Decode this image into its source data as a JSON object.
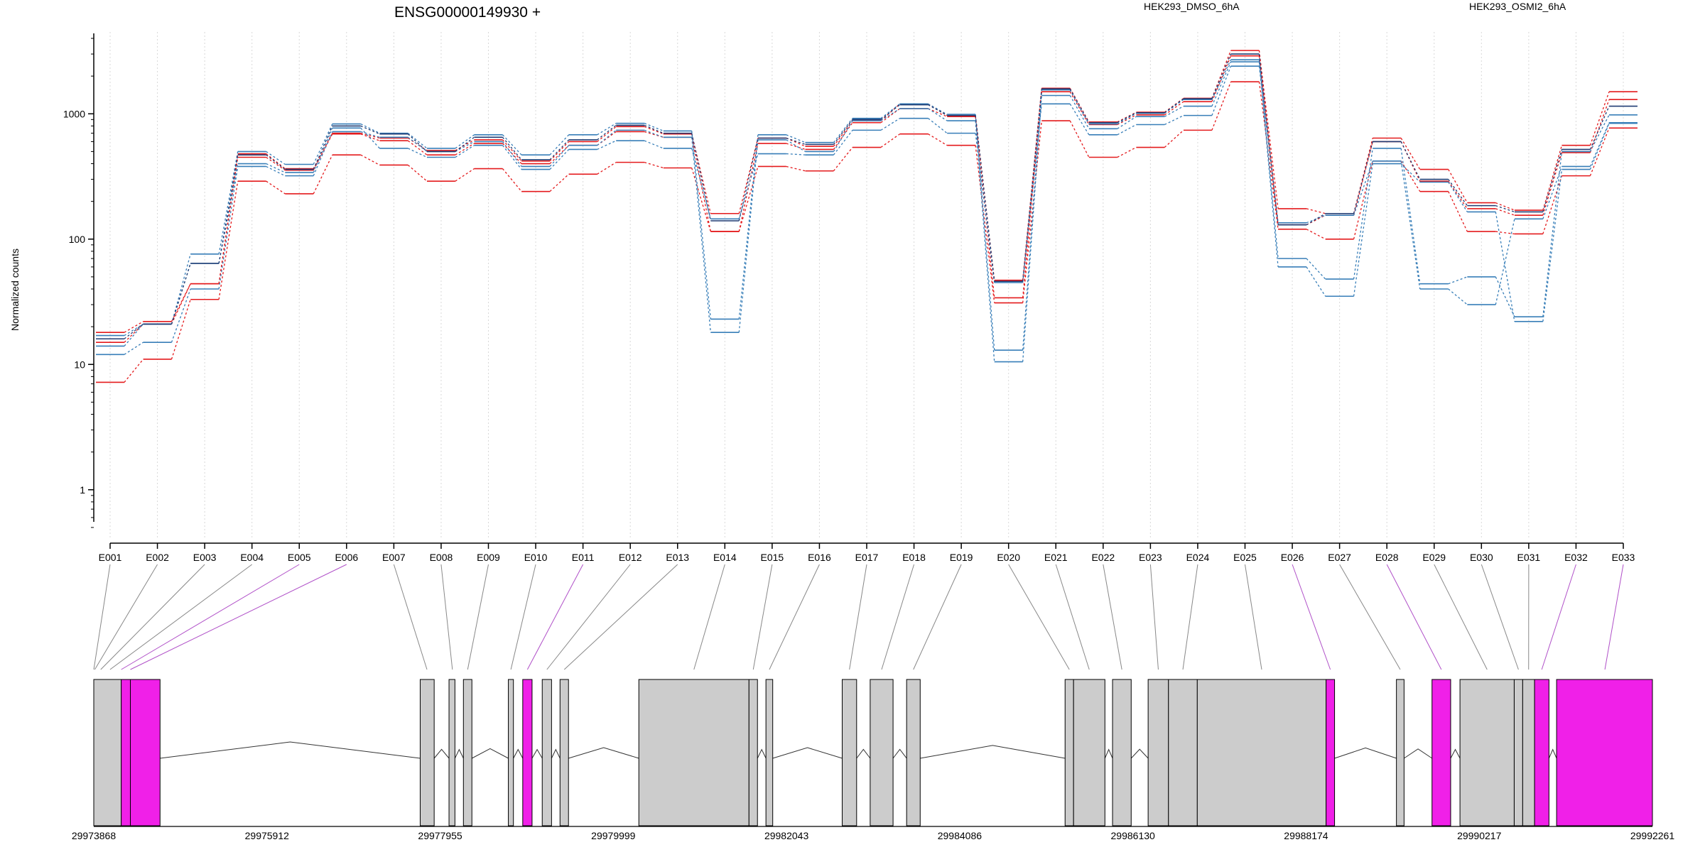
{
  "chart_data": {
    "type": "line",
    "title": "ENSG00000149930 +",
    "ylabel": "Normalized counts",
    "xlabel": "",
    "yscale": "log",
    "ylim": [
      0.4,
      4500
    ],
    "yticks": [
      1,
      10,
      100,
      1000
    ],
    "ytick_labels": [
      "1",
      "10",
      "100",
      "1000"
    ],
    "grid": "vertical dotted lines at each exon",
    "legend_position": "top",
    "categories": [
      "E001",
      "E002",
      "E003",
      "E004",
      "E005",
      "E006",
      "E007",
      "E008",
      "E009",
      "E010",
      "E011",
      "E012",
      "E013",
      "E014",
      "E015",
      "E016",
      "E017",
      "E018",
      "E019",
      "E020",
      "E021",
      "E022",
      "E023",
      "E024",
      "E025",
      "E026",
      "E027",
      "E028",
      "E029",
      "E030",
      "E031",
      "E032",
      "E033"
    ],
    "series": [
      {
        "name": "HEK293_DMSO_6hA",
        "color": "#e41a1c",
        "values": [
          18,
          22,
          44,
          480,
          365,
          700,
          640,
          510,
          620,
          420,
          600,
          790,
          690,
          160,
          640,
          550,
          880,
          1200,
          970,
          47,
          1600,
          860,
          1030,
          1330,
          3200,
          175,
          160,
          640,
          360,
          195,
          170,
          560,
          1500
        ]
      },
      {
        "name": "HEK293_DMSO_6hA",
        "color": "#e41a1c",
        "values": [
          15,
          21,
          44,
          450,
          355,
          690,
          610,
          470,
          580,
          400,
          560,
          720,
          650,
          115,
          580,
          520,
          850,
          1100,
          950,
          34,
          1500,
          820,
          980,
          1250,
          2900,
          130,
          155,
          600,
          290,
          175,
          155,
          490,
          1300
        ]
      },
      {
        "name": "HEK293_DMSO_6hA",
        "color": "#e41a1c",
        "values": [
          7.2,
          11,
          33,
          290,
          230,
          470,
          390,
          290,
          365,
          240,
          330,
          410,
          370,
          115,
          380,
          350,
          540,
          690,
          560,
          31,
          880,
          450,
          540,
          740,
          1800,
          120,
          100,
          420,
          240,
          115,
          110,
          320,
          770
        ]
      },
      {
        "name": "HEK293_OSMI2_6hA",
        "color": "#377eb8",
        "values": [
          17,
          21,
          76,
          500,
          395,
          830,
          700,
          530,
          680,
          470,
          680,
          840,
          730,
          23,
          680,
          590,
          920,
          1200,
          990,
          13,
          1550,
          830,
          1010,
          1300,
          2700,
          70,
          48,
          530,
          44,
          50,
          24,
          500,
          980
        ]
      },
      {
        "name": "HEK293_OSMI2_6hA",
        "color": "#377eb8",
        "values": [
          14,
          21,
          64,
          400,
          340,
          770,
          530,
          450,
          560,
          360,
          520,
          610,
          530,
          145,
          480,
          470,
          740,
          920,
          700,
          45,
          1200,
          680,
          820,
          970,
          2400,
          135,
          155,
          420,
          40,
          30,
          145,
          380,
          850
        ]
      },
      {
        "name": "HEK293_OSMI2_6hA",
        "color": "#377eb8",
        "values": [
          12,
          15,
          40,
          380,
          320,
          720,
          650,
          500,
          600,
          380,
          560,
          740,
          650,
          18,
          620,
          500,
          880,
          1100,
          880,
          10.5,
          1400,
          760,
          950,
          1150,
          2600,
          60,
          35,
          400,
          285,
          165,
          22,
          360,
          840
        ]
      },
      {
        "name": "",
        "color": "#1f3b73",
        "values": [
          16,
          21,
          64,
          470,
          360,
          800,
          690,
          500,
          650,
          430,
          620,
          810,
          700,
          140,
          640,
          570,
          900,
          1180,
          970,
          46,
          1580,
          850,
          1020,
          1320,
          3000,
          130,
          160,
          600,
          300,
          185,
          165,
          520,
          1150
        ]
      }
    ]
  },
  "legend": [
    {
      "label": "HEK293_DMSO_6hA",
      "color": "#e41a1c"
    },
    {
      "label": "HEK293_OSMI2_6hA",
      "color": "#377eb8"
    }
  ],
  "gene_model": {
    "coord_start": 29973868,
    "coord_end": 29992261,
    "coord_labels": [
      "29973868",
      "29975912",
      "29977955",
      "29979999",
      "29982043",
      "29984086",
      "29986130",
      "29988174",
      "29990217",
      "29992261"
    ],
    "exon_color": "#cccccc",
    "highlight_color": "#f020e8",
    "connector_color": "#888888",
    "connector_highlight_color": "#b050c8",
    "blocks": [
      {
        "start": 29973868,
        "end": 29974192,
        "highlight": false
      },
      {
        "start": 29974192,
        "end": 29974300,
        "highlight": true
      },
      {
        "start": 29974300,
        "end": 29974650,
        "highlight": true
      },
      {
        "start": 29977720,
        "end": 29977885,
        "highlight": false
      },
      {
        "start": 29978060,
        "end": 29978130,
        "highlight": false
      },
      {
        "start": 29978230,
        "end": 29978330,
        "highlight": false
      },
      {
        "start": 29978760,
        "end": 29978820,
        "highlight": false
      },
      {
        "start": 29978930,
        "end": 29979040,
        "highlight": true
      },
      {
        "start": 29979160,
        "end": 29979270,
        "highlight": false
      },
      {
        "start": 29979370,
        "end": 29979470,
        "highlight": false
      },
      {
        "start": 29980300,
        "end": 29981600,
        "highlight": false
      },
      {
        "start": 29981600,
        "end": 29981700,
        "highlight": false
      },
      {
        "start": 29981800,
        "end": 29981880,
        "highlight": false
      },
      {
        "start": 29982700,
        "end": 29982870,
        "highlight": false
      },
      {
        "start": 29983030,
        "end": 29983300,
        "highlight": false
      },
      {
        "start": 29983460,
        "end": 29983620,
        "highlight": false
      },
      {
        "start": 29985330,
        "end": 29985430,
        "highlight": false
      },
      {
        "start": 29985430,
        "end": 29985800,
        "highlight": false
      },
      {
        "start": 29985890,
        "end": 29986110,
        "highlight": false
      },
      {
        "start": 29986310,
        "end": 29986550,
        "highlight": false
      },
      {
        "start": 29986550,
        "end": 29986890,
        "highlight": false
      },
      {
        "start": 29986890,
        "end": 29988410,
        "highlight": false
      },
      {
        "start": 29988410,
        "end": 29988510,
        "highlight": true
      },
      {
        "start": 29989240,
        "end": 29989330,
        "highlight": false
      },
      {
        "start": 29989660,
        "end": 29989880,
        "highlight": true
      },
      {
        "start": 29989990,
        "end": 29990630,
        "highlight": false
      },
      {
        "start": 29990630,
        "end": 29990730,
        "highlight": false
      },
      {
        "start": 29990730,
        "end": 29990870,
        "highlight": false
      },
      {
        "start": 29990870,
        "end": 29991040,
        "highlight": true
      },
      {
        "start": 29991130,
        "end": 29992261,
        "highlight": true
      }
    ],
    "exon_positions": [
      {
        "pos": 29973868,
        "highlight": false
      },
      {
        "pos": 29973880,
        "highlight": false
      },
      {
        "pos": 29973950,
        "highlight": false
      },
      {
        "pos": 29974060,
        "highlight": false
      },
      {
        "pos": 29974192,
        "highlight": true
      },
      {
        "pos": 29974300,
        "highlight": true
      },
      {
        "pos": 29977800,
        "highlight": false
      },
      {
        "pos": 29978100,
        "highlight": false
      },
      {
        "pos": 29978280,
        "highlight": false
      },
      {
        "pos": 29978790,
        "highlight": false
      },
      {
        "pos": 29978985,
        "highlight": true
      },
      {
        "pos": 29979215,
        "highlight": false
      },
      {
        "pos": 29979420,
        "highlight": false
      },
      {
        "pos": 29980950,
        "highlight": false
      },
      {
        "pos": 29981650,
        "highlight": false
      },
      {
        "pos": 29981840,
        "highlight": false
      },
      {
        "pos": 29982785,
        "highlight": false
      },
      {
        "pos": 29983165,
        "highlight": false
      },
      {
        "pos": 29983540,
        "highlight": false
      },
      {
        "pos": 29985380,
        "highlight": false
      },
      {
        "pos": 29985615,
        "highlight": false
      },
      {
        "pos": 29986000,
        "highlight": false
      },
      {
        "pos": 29986430,
        "highlight": false
      },
      {
        "pos": 29986720,
        "highlight": false
      },
      {
        "pos": 29987650,
        "highlight": false
      },
      {
        "pos": 29988460,
        "highlight": true
      },
      {
        "pos": 29989285,
        "highlight": false
      },
      {
        "pos": 29989770,
        "highlight": true
      },
      {
        "pos": 29990310,
        "highlight": false
      },
      {
        "pos": 29990680,
        "highlight": false
      },
      {
        "pos": 29990800,
        "highlight": false
      },
      {
        "pos": 29990955,
        "highlight": true
      },
      {
        "pos": 29991700,
        "highlight": true
      }
    ]
  }
}
